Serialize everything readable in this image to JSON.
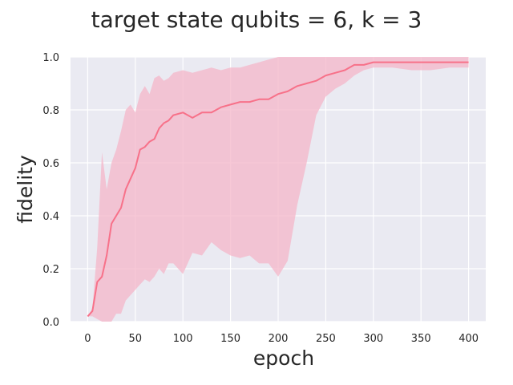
{
  "chart_data": {
    "type": "line",
    "title": "target state qubits = 6, k = 3",
    "xlabel": "epoch",
    "ylabel": "fidelity",
    "xlim": [
      -18,
      418
    ],
    "ylim": [
      0.0,
      1.0
    ],
    "xticks": [
      0,
      50,
      100,
      150,
      200,
      250,
      300,
      350,
      400
    ],
    "yticks": [
      0.0,
      0.2,
      0.4,
      0.6,
      0.8,
      1.0
    ],
    "xtick_labels": [
      "0",
      "50",
      "100",
      "150",
      "200",
      "250",
      "300",
      "350",
      "400"
    ],
    "ytick_labels": [
      "0.0",
      "0.2",
      "0.4",
      "0.6",
      "0.8",
      "1.0"
    ],
    "grid": true,
    "style": "seaborn darkgrid",
    "colors": {
      "background": "#eaeaf2",
      "grid": "#ffffff",
      "line": "#f77189",
      "band": "#f4b6c8"
    },
    "series": [
      {
        "x": [
          0,
          5,
          10,
          15,
          20,
          25,
          30,
          35,
          40,
          45,
          50,
          55,
          60,
          65,
          70,
          75,
          80,
          85,
          90,
          100,
          110,
          120,
          130,
          140,
          150,
          160,
          170,
          180,
          190,
          200,
          210,
          220,
          230,
          240,
          250,
          260,
          270,
          280,
          290,
          300,
          320,
          340,
          360,
          380,
          400
        ],
        "y": [
          0.02,
          0.04,
          0.15,
          0.17,
          0.25,
          0.37,
          0.4,
          0.43,
          0.5,
          0.54,
          0.58,
          0.65,
          0.66,
          0.68,
          0.69,
          0.73,
          0.75,
          0.76,
          0.78,
          0.79,
          0.77,
          0.79,
          0.79,
          0.81,
          0.82,
          0.83,
          0.83,
          0.84,
          0.84,
          0.86,
          0.87,
          0.89,
          0.9,
          0.91,
          0.93,
          0.94,
          0.95,
          0.97,
          0.97,
          0.98,
          0.98,
          0.98,
          0.98,
          0.98,
          0.98
        ],
        "lower": [
          0.02,
          0.02,
          0.01,
          0.0,
          0.0,
          0.0,
          0.03,
          0.03,
          0.08,
          0.1,
          0.12,
          0.14,
          0.16,
          0.15,
          0.17,
          0.2,
          0.18,
          0.22,
          0.22,
          0.18,
          0.26,
          0.25,
          0.3,
          0.27,
          0.25,
          0.24,
          0.25,
          0.22,
          0.22,
          0.17,
          0.23,
          0.44,
          0.6,
          0.78,
          0.85,
          0.88,
          0.9,
          0.93,
          0.95,
          0.96,
          0.96,
          0.95,
          0.95,
          0.96,
          0.96
        ],
        "upper": [
          0.02,
          0.05,
          0.28,
          0.64,
          0.5,
          0.6,
          0.65,
          0.72,
          0.8,
          0.82,
          0.79,
          0.86,
          0.89,
          0.86,
          0.92,
          0.93,
          0.91,
          0.92,
          0.94,
          0.95,
          0.94,
          0.95,
          0.96,
          0.95,
          0.96,
          0.96,
          0.97,
          0.98,
          0.99,
          1.0,
          1.0,
          1.0,
          1.0,
          1.0,
          1.0,
          1.0,
          1.0,
          1.0,
          1.0,
          1.0,
          1.0,
          1.0,
          1.0,
          1.0,
          1.0
        ]
      }
    ]
  }
}
